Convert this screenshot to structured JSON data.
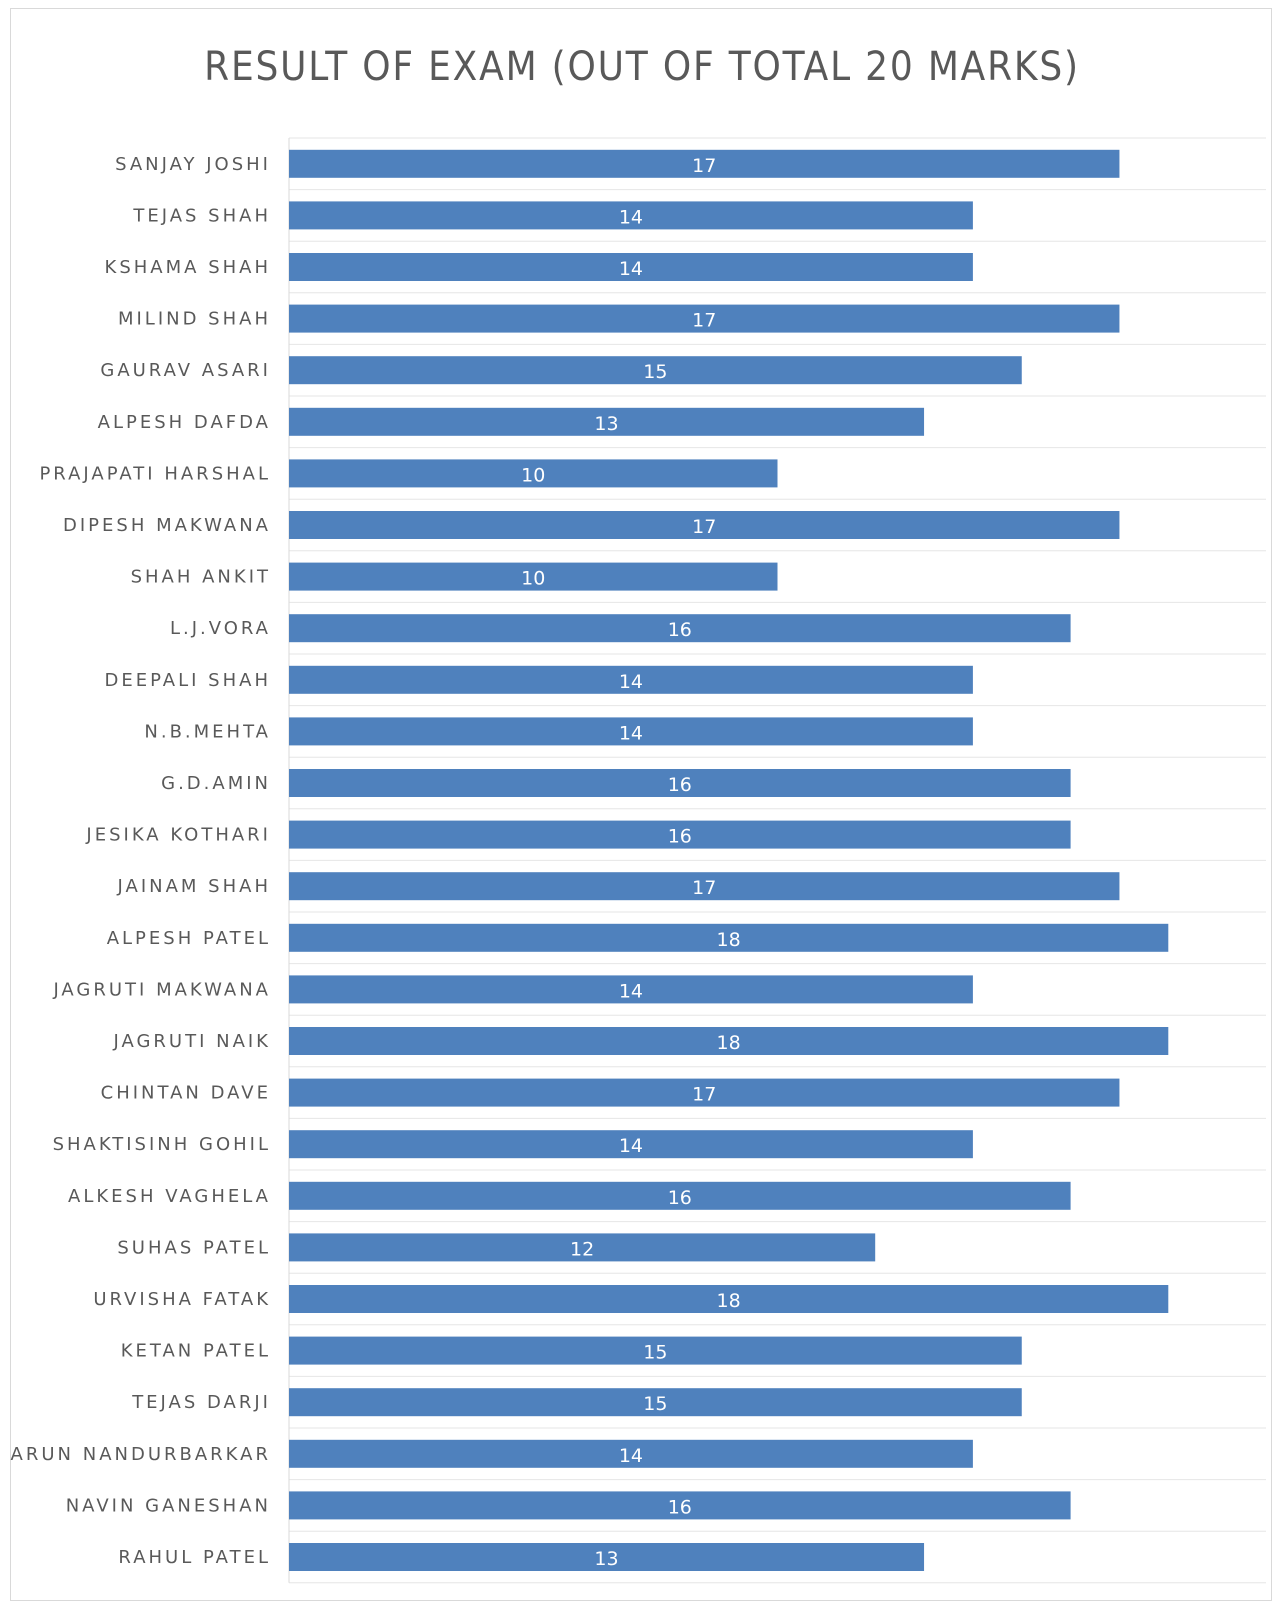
{
  "chart_data": {
    "type": "bar",
    "orientation": "horizontal",
    "title": "RESULT OF EXAM (OUT OF TOTAL 20 MARKS)",
    "xlabel": "",
    "ylabel": "",
    "xlim": [
      0,
      20
    ],
    "grid": true,
    "legend": "none",
    "bar_color": "#4f81bd",
    "data_labels": "inside-center",
    "categories": [
      "SANJAY JOSHI",
      "TEJAS SHAH",
      "KSHAMA SHAH",
      "MILIND SHAH",
      "GAURAV ASARI",
      "ALPESH DAFDA",
      "PRAJAPATI HARSHAL",
      "DIPESH MAKWANA",
      "SHAH ANKIT",
      "L.J.VORA",
      "DEEPALI SHAH",
      "N.B.MEHTA",
      "G.D.AMIN",
      "JESIKA KOTHARI",
      "JAINAM SHAH",
      "ALPESH PATEL",
      "JAGRUTI MAKWANA",
      "JAGRUTI NAIK",
      "CHINTAN DAVE",
      "SHAKTISINH GOHIL",
      "ALKESH VAGHELA",
      "SUHAS PATEL",
      "URVISHA FATAK",
      "KETAN PATEL",
      "TEJAS DARJI",
      "ARUN NANDURBARKAR",
      "NAVIN GANESHAN",
      "RAHUL PATEL"
    ],
    "values": [
      17,
      14,
      14,
      17,
      15,
      13,
      10,
      17,
      10,
      16,
      14,
      14,
      16,
      16,
      17,
      18,
      14,
      18,
      17,
      14,
      16,
      12,
      18,
      15,
      15,
      14,
      16,
      13
    ]
  }
}
